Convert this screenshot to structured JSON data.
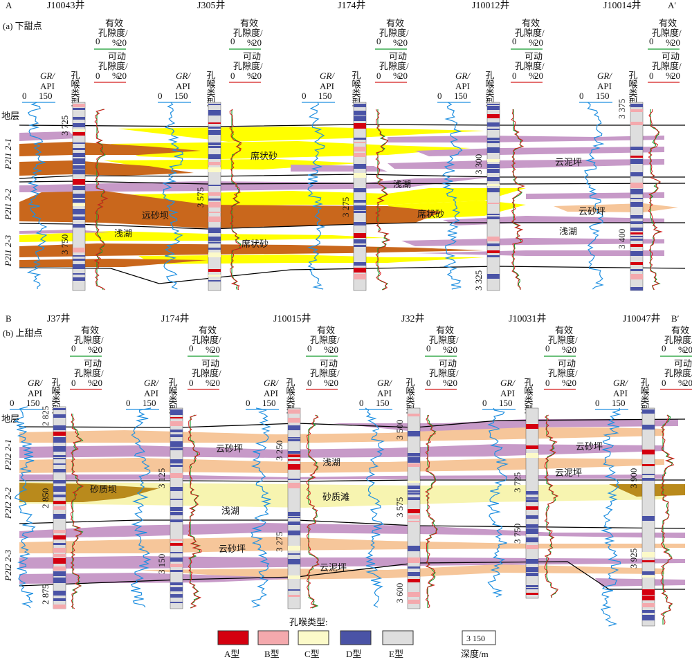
{
  "colors": {
    "dolo_sand": "#f6c69a",
    "sheet_sand": "#ffff00",
    "sand_bar": "#b98a1c",
    "sand_beach": "#f7f4b0",
    "distal_bar": "#c9671c",
    "dolo_mud": "#c79ac8",
    "type_A": "#d4000f",
    "type_B": "#f4a9ad",
    "type_C": "#fcfac9",
    "type_D": "#4a53a6",
    "type_E": "#dedede",
    "gr_curve": "#1f8fe0",
    "eff_poro": "#119b2a",
    "mov_poro": "#d41a1a"
  },
  "panelA": {
    "section_left": "A",
    "section_right": "A′",
    "subtitle": "(a) 下甜点",
    "stratum_label": "地层",
    "layers": [
      "P2l1 2-1",
      "P2l1 2-2",
      "P2l1 2-3"
    ],
    "wells": [
      {
        "name": "J10043井",
        "depths": [
          "3 725",
          "3 750"
        ]
      },
      {
        "name": "J305井",
        "depths": [
          "3 575"
        ]
      },
      {
        "name": "J174井",
        "depths": [
          "3 275"
        ]
      },
      {
        "name": "J10012井",
        "depths": [
          "3 300",
          "3 325"
        ]
      },
      {
        "name": "J10014井",
        "depths": [
          "3 375",
          "3 400"
        ]
      }
    ],
    "facies": [
      "席状砂",
      "浅湖",
      "远砂坝",
      "席状砂",
      "浅湖",
      "席状砂",
      "云泥坪",
      "云砂坪",
      "浅湖"
    ]
  },
  "panelB": {
    "section_left": "B",
    "section_right": "B′",
    "subtitle": "(b) 上甜点",
    "stratum_label": "地层",
    "layers": [
      "P2l2 2-1",
      "P2l2 2-2",
      "P2l2 2-3"
    ],
    "wells": [
      {
        "name": "J37井",
        "depths": [
          "2 825",
          "2 850",
          "2 875"
        ]
      },
      {
        "name": "J174井",
        "depths": [
          "3 125",
          "3 150"
        ]
      },
      {
        "name": "J10015井",
        "depths": [
          "3 250",
          "3 275"
        ]
      },
      {
        "name": "J32井",
        "depths": [
          "3 500",
          "3 575",
          "3 600"
        ]
      },
      {
        "name": "J10031井",
        "depths": [
          "3 725",
          "3 750"
        ]
      },
      {
        "name": "J10047井",
        "depths": [
          "3 900",
          "3 925"
        ]
      }
    ],
    "facies": [
      "云砂坪",
      "浅湖",
      "砂质坝",
      "浅湖",
      "砂质滩",
      "云砂坪",
      "云泥坪",
      "云砂坪",
      "云泥坪"
    ]
  },
  "track_labels": {
    "gr_top": "GR/",
    "gr_bottom": "API",
    "gr_scale_min": "0",
    "gr_scale_max": "150",
    "pore_type": "孔喉类型",
    "eff_line1": "有效",
    "eff_line2": "孔隙度/",
    "eff_line3": "%",
    "mov_line1": "可动",
    "mov_line2": "孔隙度/",
    "mov_line3": "%",
    "poro_min": "0",
    "poro_max": "20"
  },
  "legend": {
    "title": "孔喉类型:",
    "items": [
      "A型",
      "B型",
      "C型",
      "D型",
      "E型"
    ],
    "depth_sample": "3 150",
    "depth_label": "深度/m"
  }
}
